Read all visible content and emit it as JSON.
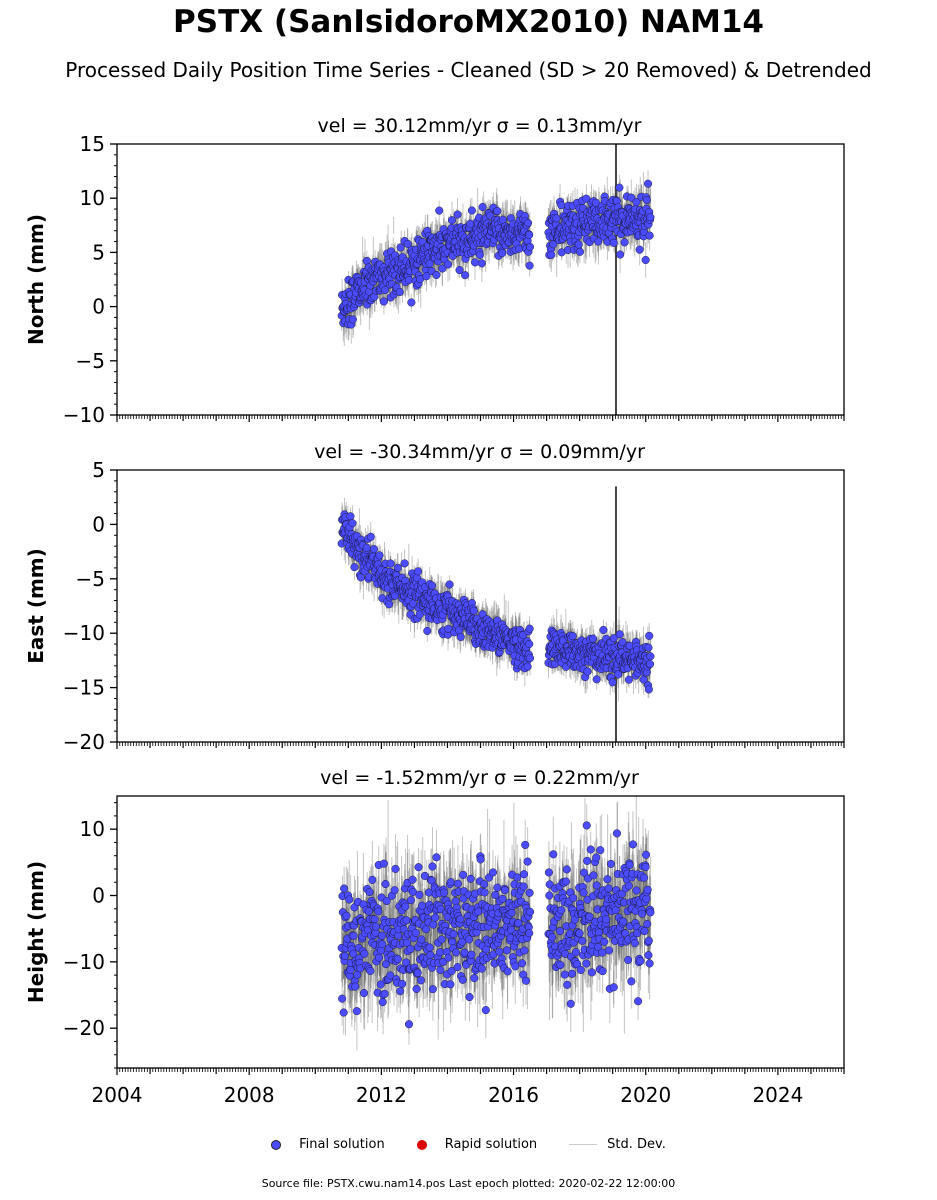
{
  "title": "PSTX (SanIsidoroMX2010) NAM14",
  "subtitle": "Processed Daily Position Time Series - Cleaned (SD > 20 Removed) & Detrended",
  "legend": {
    "final_label": "Final solution",
    "rapid_label": "Rapid solution",
    "std_label": "Std. Dev."
  },
  "colors": {
    "final": "#4b4bff",
    "rapid": "#dd0000",
    "stddev": "#bdbdbd",
    "outline": "#1a1a40"
  },
  "source_text": "Source file: PSTX.cwu.nam14.pos  Last epoch plotted: 2020-02-22 12:00:00",
  "chart_data": [
    {
      "type": "scatter",
      "title": "vel = 30.12mm/yr   σ = 0.13mm/yr",
      "ylabel": "North (mm)",
      "xlim": [
        2004,
        2026
      ],
      "ylim": [
        -10,
        15
      ],
      "yticks": [
        -10,
        -5,
        0,
        5,
        10,
        15
      ],
      "x_tick_labels": [],
      "trend": [
        [
          2010.8,
          -0.5
        ],
        [
          2011.5,
          2.0
        ],
        [
          2012.5,
          3.5
        ],
        [
          2013.5,
          5.0
        ],
        [
          2014.5,
          6.0
        ],
        [
          2015.5,
          7.0
        ],
        [
          2016.5,
          6.5
        ],
        [
          2017.0,
          6.8
        ],
        [
          2018.0,
          7.5
        ],
        [
          2019.0,
          8.0
        ],
        [
          2020.15,
          8.5
        ]
      ],
      "scatter_sd": 1.1,
      "sigma_est": 1.2,
      "gaps": [
        [
          2016.5,
          2017.05
        ]
      ],
      "spike": {
        "x": 2019.1,
        "low": -10,
        "high": 15
      }
    },
    {
      "type": "scatter",
      "title": "vel = -30.34mm/yr   σ = 0.09mm/yr",
      "ylabel": "East (mm)",
      "xlim": [
        2004,
        2026
      ],
      "ylim": [
        -20,
        5
      ],
      "yticks": [
        -20,
        -15,
        -10,
        -5,
        0,
        5
      ],
      "x_tick_labels": [],
      "trend": [
        [
          2010.8,
          -0.2
        ],
        [
          2011.3,
          -2.5
        ],
        [
          2012.0,
          -4.5
        ],
        [
          2013.0,
          -6.5
        ],
        [
          2014.0,
          -8.0
        ],
        [
          2015.0,
          -9.5
        ],
        [
          2016.0,
          -10.8
        ],
        [
          2016.5,
          -11.5
        ],
        [
          2017.0,
          -11.2
        ],
        [
          2018.0,
          -11.8
        ],
        [
          2019.0,
          -12.3
        ],
        [
          2020.15,
          -12.5
        ]
      ],
      "scatter_sd": 0.9,
      "sigma_est": 1.1,
      "gaps": [
        [
          2016.5,
          2017.05
        ]
      ],
      "spike": {
        "x": 2019.1,
        "low": -20,
        "high": 3.5
      }
    },
    {
      "type": "scatter",
      "title": "vel = -1.52mm/yr   σ = 0.22mm/yr",
      "ylabel": "Height (mm)",
      "xlim": [
        2004,
        2026
      ],
      "ylim": [
        -26,
        15
      ],
      "yticks": [
        -20,
        -10,
        0,
        10
      ],
      "x_tick_labels": [
        "2004",
        "2008",
        "2012",
        "2016",
        "2020",
        "2024"
      ],
      "x_tick_values": [
        2004,
        2008,
        2012,
        2016,
        2020,
        2024
      ],
      "trend": [
        [
          2010.8,
          -8
        ],
        [
          2012.0,
          -6
        ],
        [
          2014.0,
          -5
        ],
        [
          2016.0,
          -4
        ],
        [
          2017.0,
          -4
        ],
        [
          2018.0,
          -4
        ],
        [
          2019.0,
          -3
        ],
        [
          2020.15,
          -2
        ]
      ],
      "scatter_sd": 4.5,
      "sigma_est": 4.0,
      "gaps": [
        [
          2016.5,
          2017.05
        ]
      ]
    }
  ]
}
